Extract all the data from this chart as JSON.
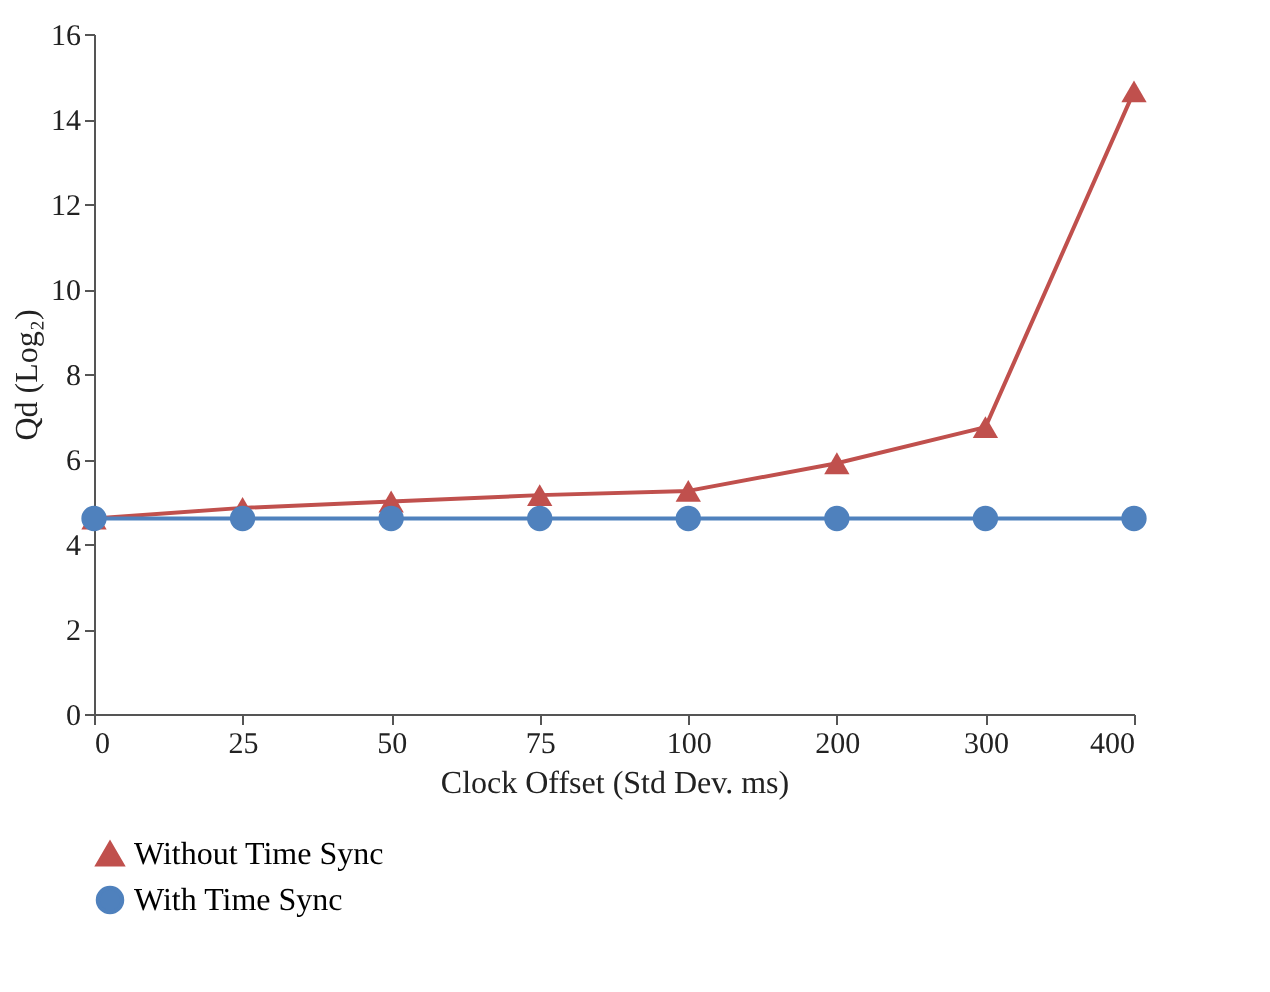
{
  "chart_data": {
    "type": "line",
    "xlabel": "Clock Offset (Std Dev. ms)",
    "ylabel": "Qd (Log₂)",
    "categories": [
      "0",
      "25",
      "50",
      "75",
      "100",
      "200",
      "300",
      "400"
    ],
    "series": [
      {
        "name": "Without Time Sync",
        "color": "#c0504d",
        "marker": "triangle",
        "values": [
          4.6,
          4.85,
          5.0,
          5.15,
          5.25,
          5.9,
          6.75,
          14.65
        ]
      },
      {
        "name": "With Time Sync",
        "color": "#4f81bd",
        "marker": "circle",
        "values": [
          4.6,
          4.6,
          4.6,
          4.6,
          4.6,
          4.6,
          4.6,
          4.6
        ]
      }
    ],
    "ylim": [
      0,
      16
    ],
    "yticks": [
      0,
      2,
      4,
      6,
      8,
      10,
      12,
      14,
      16
    ],
    "grid": false,
    "legend": "bottom left",
    "line_style": "solid"
  }
}
